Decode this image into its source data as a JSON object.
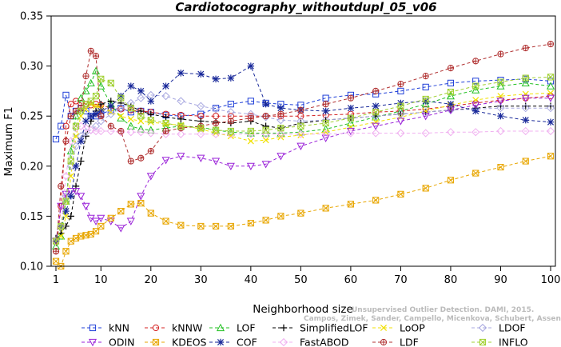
{
  "watermark": {
    "line1": "Unsupervised Outlier Detection. DAMI, 2015.",
    "line2": "Campos, Zimek, Sander, Campello, Micenkova, Schubert, Assent, Houle"
  },
  "chart_data": {
    "type": "line",
    "title": "Cardiotocography_withoutdupl_05_v06",
    "xlabel": "Neighborhood size",
    "ylabel": "Maximum F1",
    "xlim": [
      1,
      100
    ],
    "ylim": [
      0.1,
      0.35
    ],
    "x_ticks": [
      1,
      10,
      20,
      30,
      40,
      50,
      60,
      70,
      80,
      90,
      100
    ],
    "y_ticks": [
      "0.10",
      "0.15",
      "0.20",
      "0.25",
      "0.30",
      "0.35"
    ],
    "grid": false,
    "legend_position": "bottom",
    "x": [
      1,
      2,
      3,
      4,
      5,
      6,
      7,
      8,
      9,
      10,
      12,
      14,
      16,
      18,
      20,
      23,
      26,
      30,
      33,
      36,
      40,
      43,
      46,
      50,
      55,
      60,
      65,
      70,
      75,
      80,
      85,
      90,
      95,
      100
    ],
    "series": [
      {
        "name": "kNN",
        "color": "#1f3fd8",
        "marker": "square",
        "values": [
          0.227,
          0.24,
          0.271,
          0.25,
          0.255,
          0.258,
          0.255,
          0.25,
          0.25,
          0.252,
          0.256,
          0.258,
          0.254,
          0.255,
          0.254,
          0.251,
          0.25,
          0.252,
          0.258,
          0.262,
          0.265,
          0.263,
          0.262,
          0.261,
          0.268,
          0.271,
          0.272,
          0.275,
          0.279,
          0.283,
          0.285,
          0.286,
          0.287,
          0.285
        ]
      },
      {
        "name": "kNNW",
        "color": "#d42020",
        "marker": "circle",
        "values": [
          0.115,
          0.16,
          0.24,
          0.262,
          0.265,
          0.263,
          0.262,
          0.261,
          0.262,
          0.261,
          0.258,
          0.257,
          0.256,
          0.255,
          0.254,
          0.252,
          0.251,
          0.25,
          0.25,
          0.25,
          0.25,
          0.25,
          0.25,
          0.25,
          0.251,
          0.252,
          0.254,
          0.255,
          0.257,
          0.26,
          0.263,
          0.266,
          0.268,
          0.27
        ]
      },
      {
        "name": "LOF",
        "color": "#22c022",
        "marker": "triangle",
        "values": [
          0.12,
          0.13,
          0.165,
          0.215,
          0.25,
          0.268,
          0.275,
          0.283,
          0.295,
          0.28,
          0.262,
          0.248,
          0.24,
          0.237,
          0.236,
          0.238,
          0.24,
          0.239,
          0.236,
          0.234,
          0.233,
          0.233,
          0.233,
          0.234,
          0.237,
          0.243,
          0.249,
          0.255,
          0.262,
          0.27,
          0.276,
          0.28,
          0.283,
          0.28
        ]
      },
      {
        "name": "SimplifiedLOF",
        "color": "#000000",
        "marker": "plus",
        "values": [
          0.128,
          0.133,
          0.14,
          0.15,
          0.18,
          0.205,
          0.23,
          0.245,
          0.255,
          0.262,
          0.265,
          0.263,
          0.26,
          0.255,
          0.252,
          0.249,
          0.247,
          0.245,
          0.244,
          0.243,
          0.245,
          0.24,
          0.238,
          0.243,
          0.246,
          0.248,
          0.25,
          0.252,
          0.254,
          0.256,
          0.258,
          0.26,
          0.26,
          0.26
        ]
      },
      {
        "name": "LoOP",
        "color": "#f0e000",
        "marker": "x",
        "values": [
          0.125,
          0.13,
          0.15,
          0.19,
          0.23,
          0.25,
          0.257,
          0.262,
          0.26,
          0.258,
          0.254,
          0.25,
          0.247,
          0.245,
          0.244,
          0.242,
          0.241,
          0.237,
          0.233,
          0.23,
          0.225,
          0.226,
          0.229,
          0.231,
          0.234,
          0.239,
          0.244,
          0.249,
          0.255,
          0.261,
          0.266,
          0.27,
          0.272,
          0.273
        ]
      },
      {
        "name": "LDOF",
        "color": "#a8a8e0",
        "marker": "diamond",
        "values": [
          0.125,
          0.14,
          0.17,
          0.2,
          0.22,
          0.23,
          0.234,
          0.236,
          0.24,
          0.245,
          0.252,
          0.258,
          0.263,
          0.268,
          0.271,
          0.27,
          0.265,
          0.26,
          0.257,
          0.254,
          0.252,
          0.249,
          0.246,
          0.245,
          0.246,
          0.248,
          0.25,
          0.252,
          0.254,
          0.256,
          0.257,
          0.258,
          0.258,
          0.258
        ]
      },
      {
        "name": "ODIN",
        "color": "#9a22d8",
        "marker": "triangle-down",
        "values": [
          0.125,
          0.16,
          0.172,
          0.175,
          0.175,
          0.17,
          0.16,
          0.148,
          0.145,
          0.148,
          0.145,
          0.138,
          0.145,
          0.17,
          0.19,
          0.206,
          0.21,
          0.208,
          0.205,
          0.2,
          0.2,
          0.202,
          0.21,
          0.22,
          0.228,
          0.235,
          0.24,
          0.245,
          0.25,
          0.256,
          0.261,
          0.265,
          0.268,
          0.268
        ]
      },
      {
        "name": "KDEOS",
        "color": "#e8a600",
        "marker": "square-x",
        "values": [
          0.105,
          0.1,
          0.115,
          0.125,
          0.128,
          0.13,
          0.131,
          0.132,
          0.135,
          0.14,
          0.148,
          0.155,
          0.162,
          0.163,
          0.153,
          0.145,
          0.141,
          0.14,
          0.14,
          0.14,
          0.143,
          0.146,
          0.15,
          0.153,
          0.158,
          0.162,
          0.166,
          0.172,
          0.178,
          0.186,
          0.193,
          0.199,
          0.205,
          0.21
        ]
      },
      {
        "name": "COF",
        "color": "#1a2a9a",
        "marker": "asterisk",
        "values": [
          0.125,
          0.14,
          0.155,
          0.17,
          0.2,
          0.225,
          0.245,
          0.25,
          0.252,
          0.255,
          0.26,
          0.27,
          0.28,
          0.275,
          0.265,
          0.28,
          0.293,
          0.292,
          0.287,
          0.288,
          0.3,
          0.262,
          0.258,
          0.256,
          0.255,
          0.258,
          0.26,
          0.263,
          0.265,
          0.262,
          0.255,
          0.25,
          0.246,
          0.244
        ]
      },
      {
        "name": "FastABOD",
        "color": "#f0b0f0",
        "marker": "diamond",
        "values": [
          0.125,
          0.14,
          0.19,
          0.225,
          0.238,
          0.24,
          0.238,
          0.236,
          0.235,
          0.235,
          0.235,
          0.234,
          0.234,
          0.234,
          0.233,
          0.232,
          0.232,
          0.232,
          0.232,
          0.232,
          0.232,
          0.232,
          0.232,
          0.232,
          0.232,
          0.233,
          0.233,
          0.233,
          0.233,
          0.234,
          0.234,
          0.235,
          0.235,
          0.235
        ]
      },
      {
        "name": "LDF",
        "color": "#b03030",
        "marker": "circle-plus",
        "values": [
          0.115,
          0.18,
          0.225,
          0.25,
          0.255,
          0.258,
          0.29,
          0.315,
          0.31,
          0.25,
          0.24,
          0.235,
          0.205,
          0.208,
          0.215,
          0.235,
          0.238,
          0.24,
          0.243,
          0.245,
          0.248,
          0.25,
          0.252,
          0.256,
          0.262,
          0.268,
          0.275,
          0.282,
          0.29,
          0.298,
          0.305,
          0.312,
          0.318,
          0.322
        ]
      },
      {
        "name": "INFLO",
        "color": "#a0d030",
        "marker": "square-x",
        "values": [
          0.125,
          0.14,
          0.165,
          0.205,
          0.24,
          0.255,
          0.262,
          0.265,
          0.27,
          0.287,
          0.283,
          0.268,
          0.258,
          0.25,
          0.246,
          0.243,
          0.24,
          0.238,
          0.236,
          0.235,
          0.235,
          0.236,
          0.238,
          0.24,
          0.243,
          0.248,
          0.254,
          0.26,
          0.267,
          0.274,
          0.28,
          0.284,
          0.288,
          0.289
        ]
      }
    ]
  }
}
